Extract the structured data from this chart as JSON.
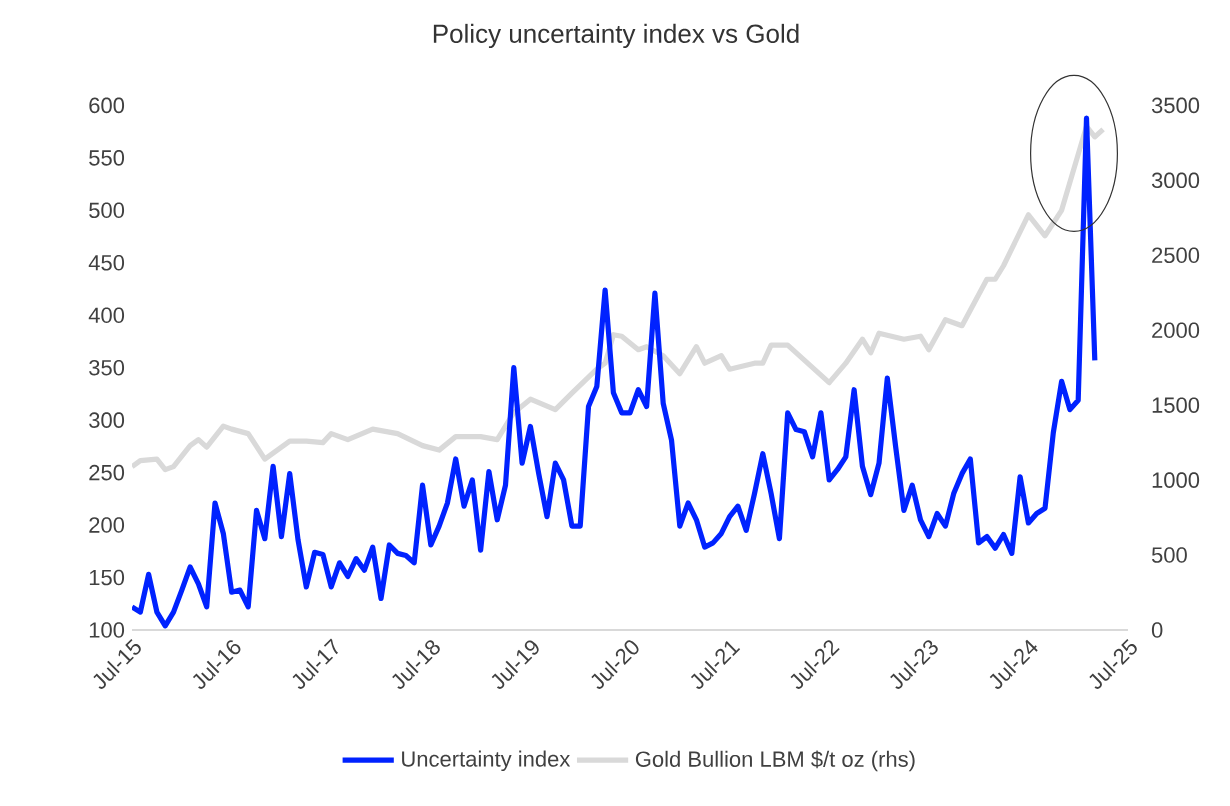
{
  "chart_data": {
    "type": "line",
    "title": "Policy uncertainty index vs Gold",
    "xlim": [
      "2015-07",
      "2025-07"
    ],
    "xticks": [
      {
        "value": "2015-07",
        "label": "Jul-15"
      },
      {
        "value": "2016-07",
        "label": "Jul-16"
      },
      {
        "value": "2017-07",
        "label": "Jul-17"
      },
      {
        "value": "2018-07",
        "label": "Jul-18"
      },
      {
        "value": "2019-07",
        "label": "Jul-19"
      },
      {
        "value": "2020-07",
        "label": "Jul-20"
      },
      {
        "value": "2021-07",
        "label": "Jul-21"
      },
      {
        "value": "2022-07",
        "label": "Jul-22"
      },
      {
        "value": "2023-07",
        "label": "Jul-23"
      },
      {
        "value": "2024-07",
        "label": "Jul-24"
      },
      {
        "value": "2025-07",
        "label": "Jul-25"
      }
    ],
    "ylim": [
      100,
      600
    ],
    "yticks": [
      100,
      150,
      200,
      250,
      300,
      350,
      400,
      450,
      500,
      550,
      600
    ],
    "y2lim": [
      0,
      3500
    ],
    "y2ticks": [
      0,
      500,
      1000,
      1500,
      2000,
      2500,
      3000,
      3500
    ],
    "legend": "bottom",
    "grid": false,
    "series": [
      {
        "name": "Uncertainty index",
        "color": "#0022ff",
        "x": [
          "2015-07",
          "2015-08",
          "2015-09",
          "2015-10",
          "2015-11",
          "2015-12",
          "2016-01",
          "2016-02",
          "2016-03",
          "2016-04",
          "2016-05",
          "2016-06",
          "2016-07",
          "2016-08",
          "2016-09",
          "2016-10",
          "2016-11",
          "2016-12",
          "2017-01",
          "2017-02",
          "2017-03",
          "2017-04",
          "2017-05",
          "2017-06",
          "2017-07",
          "2017-08",
          "2017-09",
          "2017-10",
          "2017-11",
          "2017-12",
          "2018-01",
          "2018-02",
          "2018-03",
          "2018-04",
          "2018-05",
          "2018-06",
          "2018-07",
          "2018-08",
          "2018-09",
          "2018-10",
          "2018-11",
          "2018-12",
          "2019-01",
          "2019-02",
          "2019-03",
          "2019-04",
          "2019-05",
          "2019-06",
          "2019-07",
          "2019-08",
          "2019-09",
          "2019-10",
          "2019-11",
          "2019-12",
          "2020-01",
          "2020-02",
          "2020-03",
          "2020-04",
          "2020-05",
          "2020-06",
          "2020-07",
          "2020-08",
          "2020-09",
          "2020-10",
          "2020-11",
          "2020-12",
          "2021-01",
          "2021-02",
          "2021-03",
          "2021-04",
          "2021-05",
          "2021-06",
          "2021-07",
          "2021-08",
          "2021-09",
          "2021-10",
          "2021-11",
          "2021-12",
          "2022-01",
          "2022-02",
          "2022-03",
          "2022-04",
          "2022-05",
          "2022-06",
          "2022-07",
          "2022-08",
          "2022-09",
          "2022-10",
          "2022-11",
          "2022-12",
          "2023-01",
          "2023-02",
          "2023-03",
          "2023-04",
          "2023-05",
          "2023-06",
          "2023-07",
          "2023-08",
          "2023-09",
          "2023-10",
          "2023-11",
          "2023-12",
          "2024-01",
          "2024-02",
          "2024-03",
          "2024-04",
          "2024-05",
          "2024-06",
          "2024-07",
          "2024-08",
          "2024-09",
          "2024-10",
          "2024-11",
          "2024-12",
          "2025-01",
          "2025-02",
          "2025-03"
        ],
        "values": [
          122,
          117,
          153,
          117,
          104,
          117,
          138,
          160,
          144,
          122,
          221,
          192,
          136,
          138,
          122,
          214,
          187,
          256,
          189,
          249,
          186,
          141,
          174,
          172,
          141,
          164,
          151,
          168,
          157,
          179,
          130,
          181,
          173,
          171,
          164,
          238,
          181,
          199,
          221,
          263,
          218,
          243,
          176,
          251,
          205,
          238,
          350,
          259,
          294,
          249,
          208,
          259,
          243,
          199,
          199,
          313,
          332,
          424,
          326,
          307,
          307,
          329,
          313,
          421,
          316,
          281,
          199,
          221,
          205,
          179,
          183,
          192,
          208,
          218,
          195,
          230,
          268,
          230,
          187,
          307,
          291,
          289,
          265,
          307,
          243,
          253,
          265,
          329,
          256,
          229,
          259,
          340,
          275,
          214,
          238,
          205,
          189,
          211,
          199,
          230,
          249,
          263,
          183,
          189,
          178,
          191,
          173,
          246,
          202,
          211,
          216,
          288,
          337,
          310,
          319,
          588,
          357
        ]
      },
      {
        "name": "Gold Bullion LBM $/t oz (rhs)",
        "color": "#d9d9d9",
        "axis": "y2",
        "x": [
          "2015-07",
          "2015-08",
          "2015-10",
          "2015-11",
          "2015-12",
          "2016-02",
          "2016-03",
          "2016-04",
          "2016-06",
          "2016-07",
          "2016-09",
          "2016-11",
          "2017-02",
          "2017-04",
          "2017-06",
          "2017-07",
          "2017-09",
          "2017-12",
          "2018-03",
          "2018-06",
          "2018-08",
          "2018-10",
          "2019-01",
          "2019-03",
          "2019-05",
          "2019-07",
          "2019-10",
          "2019-12",
          "2020-03",
          "2020-04",
          "2020-05",
          "2020-06",
          "2020-08",
          "2020-09",
          "2020-11",
          "2021-01",
          "2021-03",
          "2021-04",
          "2021-06",
          "2021-07",
          "2021-10",
          "2021-11",
          "2021-12",
          "2022-02",
          "2022-04",
          "2022-07",
          "2022-09",
          "2022-11",
          "2022-12",
          "2023-01",
          "2023-04",
          "2023-06",
          "2023-07",
          "2023-09",
          "2023-11",
          "2024-02",
          "2024-03",
          "2024-04",
          "2024-07",
          "2024-09",
          "2024-11",
          "2025-02",
          "2025-03",
          "2025-04"
        ],
        "values": [
          1090,
          1130,
          1140,
          1070,
          1090,
          1230,
          1270,
          1220,
          1360,
          1340,
          1310,
          1140,
          1260,
          1260,
          1250,
          1310,
          1270,
          1340,
          1310,
          1230,
          1200,
          1290,
          1290,
          1270,
          1450,
          1540,
          1470,
          1580,
          1740,
          1780,
          1970,
          1960,
          1870,
          1890,
          1830,
          1710,
          1890,
          1780,
          1830,
          1740,
          1780,
          1780,
          1900,
          1900,
          1800,
          1650,
          1780,
          1940,
          1850,
          1980,
          1940,
          1960,
          1870,
          2070,
          2030,
          2340,
          2340,
          2430,
          2770,
          2630,
          2800,
          3360,
          3290,
          3340
        ]
      }
    ]
  }
}
